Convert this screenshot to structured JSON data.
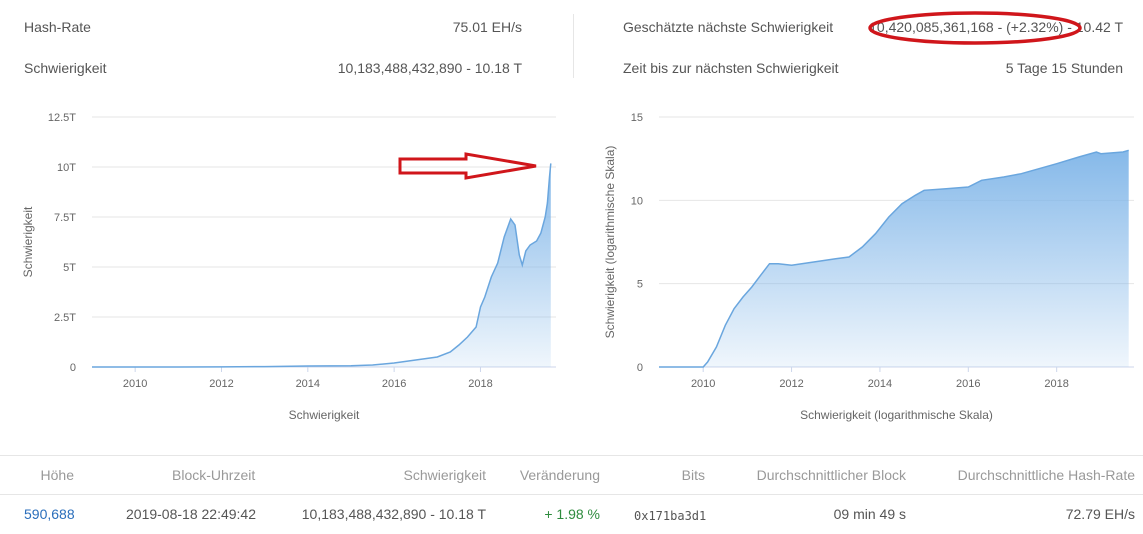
{
  "stats": {
    "hash_rate_label": "Hash-Rate",
    "hash_rate_value": "75.01 EH/s",
    "difficulty_label": "Schwierigkeit",
    "difficulty_value": "10,183,488,432,890 - 10.18 T",
    "next_difficulty_label": "Geschätzte nächste Schwierigkeit",
    "next_difficulty_value": "10,420,085,361,168 - (+2.32%) - 10.42 T",
    "time_next_label": "Zeit bis zur nächsten Schwierigkeit",
    "time_next_value": "5 Tage 15 Stunden"
  },
  "colors": {
    "area_fill": "#7fb5e8",
    "line": "#6aa6de",
    "annotation": "#d0161b",
    "link": "#2a6ebb",
    "positive": "#2e8b3e"
  },
  "chart_data": [
    {
      "type": "area",
      "xlabel": "Schwierigkeit",
      "ylabel": "Schwierigkeit",
      "x_ticks": [
        "2010",
        "2012",
        "2014",
        "2016",
        "2018"
      ],
      "y_ticks": [
        "0",
        "2.5T",
        "5T",
        "7.5T",
        "10T",
        "12.5T"
      ],
      "xlim": [
        2009.0,
        2019.75
      ],
      "ylim": [
        0,
        12.5
      ],
      "grid": true,
      "annotation": "arrow",
      "x": [
        2009.0,
        2010.0,
        2011.0,
        2012.0,
        2013.0,
        2014.0,
        2015.0,
        2015.5,
        2016.0,
        2016.5,
        2017.0,
        2017.3,
        2017.5,
        2017.7,
        2017.9,
        2018.0,
        2018.1,
        2018.25,
        2018.4,
        2018.55,
        2018.7,
        2018.8,
        2018.9,
        2018.97,
        2019.05,
        2019.15,
        2019.3,
        2019.4,
        2019.5,
        2019.55,
        2019.6,
        2019.63
      ],
      "values": [
        0,
        0,
        0.001,
        0.003,
        0.02,
        0.05,
        0.06,
        0.1,
        0.2,
        0.35,
        0.5,
        0.75,
        1.1,
        1.5,
        2.0,
        3.0,
        3.5,
        4.5,
        5.2,
        6.5,
        7.4,
        7.1,
        5.6,
        5.1,
        5.8,
        6.1,
        6.3,
        6.7,
        7.5,
        8.2,
        9.5,
        10.18
      ]
    },
    {
      "type": "area",
      "xlabel": "Schwierigkeit (logarithmische Skala)",
      "ylabel": "Schwierigkeit (logarithmische Skala)",
      "x_ticks": [
        "2010",
        "2012",
        "2014",
        "2016",
        "2018"
      ],
      "y_ticks": [
        "0",
        "5",
        "10",
        "15"
      ],
      "xlim": [
        2009.0,
        2019.75
      ],
      "ylim": [
        0,
        15
      ],
      "grid": true,
      "x": [
        2009.0,
        2010.0,
        2010.1,
        2010.3,
        2010.5,
        2010.7,
        2010.9,
        2011.1,
        2011.3,
        2011.5,
        2011.7,
        2012.0,
        2012.5,
        2013.0,
        2013.3,
        2013.6,
        2013.9,
        2014.2,
        2014.5,
        2014.8,
        2015.0,
        2015.5,
        2016.0,
        2016.3,
        2016.8,
        2017.2,
        2017.6,
        2018.0,
        2018.5,
        2018.9,
        2019.0,
        2019.5,
        2019.63
      ],
      "values": [
        0,
        0,
        0.3,
        1.2,
        2.5,
        3.5,
        4.2,
        4.8,
        5.5,
        6.2,
        6.2,
        6.1,
        6.3,
        6.5,
        6.6,
        7.2,
        8.0,
        9.0,
        9.8,
        10.3,
        10.6,
        10.7,
        10.8,
        11.2,
        11.4,
        11.6,
        11.9,
        12.2,
        12.6,
        12.9,
        12.8,
        12.9,
        13.0
      ]
    }
  ],
  "table": {
    "headers": [
      "Höhe",
      "Block-Uhrzeit",
      "Schwierigkeit",
      "Veränderung",
      "Bits",
      "Durchschnittlicher Block",
      "Durchschnittliche Hash-Rate"
    ],
    "row": {
      "height": "590,688",
      "time": "2019-08-18 22:49:42",
      "difficulty": "10,183,488,432,890 - 10.18 T",
      "change": "+ 1.98 %",
      "bits": "0x171ba3d1",
      "avg_block": "09 min 49 s",
      "avg_hash": "72.79 EH/s"
    }
  }
}
